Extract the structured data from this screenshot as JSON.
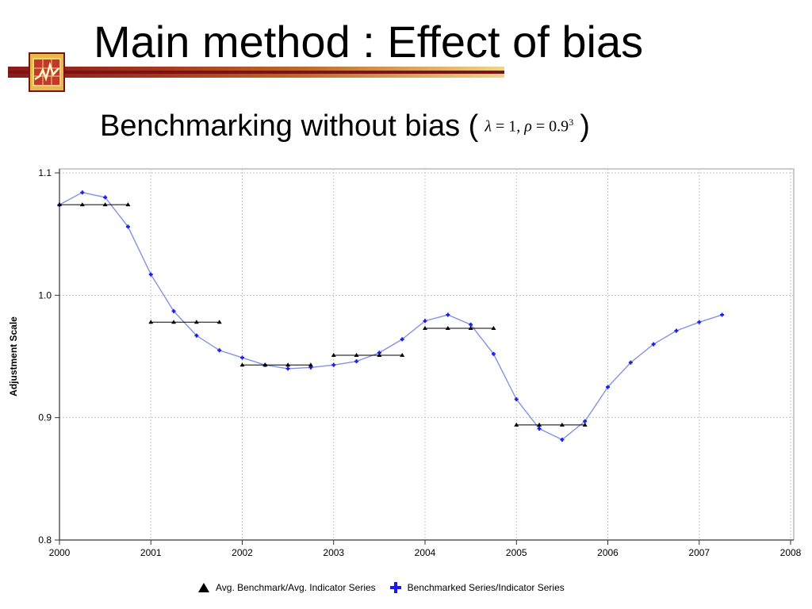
{
  "slide": {
    "title": "Main method : Effect of bias",
    "subtitle_prefix": "Benchmarking without bias (",
    "subtitle_suffix": ")",
    "formula": {
      "lambda": "λ",
      "lambda_value": "= 1,",
      "rho": "ρ",
      "rho_value": "= 0.9",
      "rho_exponent": "3"
    }
  },
  "colors": {
    "benchmark": "#000000",
    "benchmarked": "#1a1aee",
    "benchmarked_line": "#7f95e0",
    "grid": "#c8c8c8",
    "title_bar": "#8b1a1a"
  },
  "chart_data": {
    "type": "line",
    "ylabel": "Adjustment Scale",
    "xlabel": "",
    "xlim": [
      2000,
      2008
    ],
    "ylim": [
      0.8,
      1.1
    ],
    "x_ticks": [
      "2000",
      "2001",
      "2002",
      "2003",
      "2004",
      "2005",
      "2006",
      "2007",
      "2008"
    ],
    "y_ticks": [
      "0.8",
      "0.9",
      "1.0",
      "1.1"
    ],
    "grid": true,
    "legend_position": "bottom",
    "series": [
      {
        "name": "Avg. Benchmark/Avg. Indicator Series",
        "marker": "triangle",
        "segments": [
          {
            "x": [
              2000,
              2000.25,
              2000.5,
              2000.75
            ],
            "y": 1.074
          },
          {
            "x": [
              2001,
              2001.25,
              2001.5,
              2001.75
            ],
            "y": 0.978
          },
          {
            "x": [
              2002,
              2002.25,
              2002.5,
              2002.75
            ],
            "y": 0.943
          },
          {
            "x": [
              2003,
              2003.25,
              2003.5,
              2003.75
            ],
            "y": 0.951
          },
          {
            "x": [
              2004,
              2004.25,
              2004.5,
              2004.75
            ],
            "y": 0.973
          },
          {
            "x": [
              2005,
              2005.25,
              2005.5,
              2005.75
            ],
            "y": 0.894
          }
        ]
      },
      {
        "name": "Benchmarked Series/Indicator Series",
        "marker": "cross",
        "x": [
          2000,
          2000.25,
          2000.5,
          2000.75,
          2001,
          2001.25,
          2001.5,
          2001.75,
          2002,
          2002.25,
          2002.5,
          2002.75,
          2003,
          2003.25,
          2003.5,
          2003.75,
          2004,
          2004.25,
          2004.5,
          2004.75,
          2005,
          2005.25,
          2005.5,
          2005.75,
          2006,
          2006.25,
          2006.5,
          2006.75,
          2007,
          2007.25
        ],
        "y": [
          1.074,
          1.084,
          1.08,
          1.056,
          1.017,
          0.987,
          0.967,
          0.955,
          0.949,
          0.943,
          0.94,
          0.941,
          0.943,
          0.946,
          0.953,
          0.964,
          0.979,
          0.984,
          0.976,
          0.952,
          0.915,
          0.891,
          0.882,
          0.897,
          0.925,
          0.945,
          0.96,
          0.971,
          0.978,
          0.984
        ]
      }
    ]
  }
}
